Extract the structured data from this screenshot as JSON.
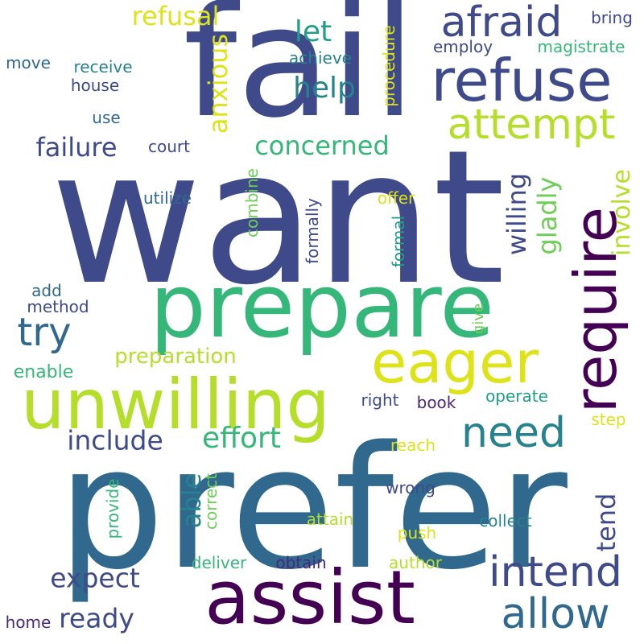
{
  "palette": {
    "navy": "#3e4a89",
    "indigo": "#482878",
    "purple": "#440154",
    "steel": "#31688e",
    "teal": "#26828e",
    "sea": "#1f9e89",
    "green": "#35b779",
    "lime": "#6ece58",
    "yellowgreen": "#b5de2b",
    "yellow": "#dde318"
  },
  "words": [
    {
      "text": "fail",
      "color": "navy",
      "vertical": false
    },
    {
      "text": "want",
      "color": "navy",
      "vertical": false
    },
    {
      "text": "prefer",
      "color": "steel",
      "vertical": false
    },
    {
      "text": "prepare",
      "color": "green",
      "vertical": false
    },
    {
      "text": "assist",
      "color": "purple",
      "vertical": false
    },
    {
      "text": "unwilling",
      "color": "yellowgreen",
      "vertical": false
    },
    {
      "text": "require",
      "color": "purple",
      "vertical": true
    },
    {
      "text": "refuse",
      "color": "navy",
      "vertical": false
    },
    {
      "text": "eager",
      "color": "yellow",
      "vertical": false
    },
    {
      "text": "afraid",
      "color": "navy",
      "vertical": false
    },
    {
      "text": "attempt",
      "color": "yellowgreen",
      "vertical": false
    },
    {
      "text": "allow",
      "color": "steel",
      "vertical": false
    },
    {
      "text": "intend",
      "color": "navy",
      "vertical": false
    },
    {
      "text": "need",
      "color": "teal",
      "vertical": false
    },
    {
      "text": "try",
      "color": "steel",
      "vertical": false
    },
    {
      "text": "effort",
      "color": "green",
      "vertical": false
    },
    {
      "text": "include",
      "color": "navy",
      "vertical": false
    },
    {
      "text": "expect",
      "color": "navy",
      "vertical": false
    },
    {
      "text": "ready",
      "color": "navy",
      "vertical": false
    },
    {
      "text": "concerned",
      "color": "green",
      "vertical": false
    },
    {
      "text": "failure",
      "color": "navy",
      "vertical": false
    },
    {
      "text": "refusal",
      "color": "yellow",
      "vertical": false
    },
    {
      "text": "help",
      "color": "teal",
      "vertical": false
    },
    {
      "text": "let",
      "color": "sea",
      "vertical": false
    },
    {
      "text": "anxious",
      "color": "yellow",
      "vertical": true
    },
    {
      "text": "willing",
      "color": "navy",
      "vertical": true
    },
    {
      "text": "gladly",
      "color": "lime",
      "vertical": true
    },
    {
      "text": "involve",
      "color": "yellowgreen",
      "vertical": true
    },
    {
      "text": "able",
      "color": "teal",
      "vertical": true
    },
    {
      "text": "tend",
      "color": "navy",
      "vertical": true
    },
    {
      "text": "preparation",
      "color": "yellowgreen",
      "vertical": false
    },
    {
      "text": "enable",
      "color": "green",
      "vertical": false
    },
    {
      "text": "bring",
      "color": "navy",
      "vertical": false
    },
    {
      "text": "employ",
      "color": "navy",
      "vertical": false
    },
    {
      "text": "magistrate",
      "color": "green",
      "vertical": false
    },
    {
      "text": "achieve",
      "color": "teal",
      "vertical": false
    },
    {
      "text": "procedure",
      "color": "yellow",
      "vertical": true
    },
    {
      "text": "move",
      "color": "steel",
      "vertical": false
    },
    {
      "text": "receive",
      "color": "teal",
      "vertical": false
    },
    {
      "text": "house",
      "color": "navy",
      "vertical": false
    },
    {
      "text": "use",
      "color": "steel",
      "vertical": false
    },
    {
      "text": "court",
      "color": "navy",
      "vertical": false
    },
    {
      "text": "utilize",
      "color": "steel",
      "vertical": false
    },
    {
      "text": "combine",
      "color": "lime",
      "vertical": true
    },
    {
      "text": "formally",
      "color": "navy",
      "vertical": true
    },
    {
      "text": "formal",
      "color": "sea",
      "vertical": true
    },
    {
      "text": "offer",
      "color": "yellow",
      "vertical": false
    },
    {
      "text": "add",
      "color": "steel",
      "vertical": false
    },
    {
      "text": "method",
      "color": "navy",
      "vertical": false
    },
    {
      "text": "give",
      "color": "lime",
      "vertical": true
    },
    {
      "text": "right",
      "color": "navy",
      "vertical": false
    },
    {
      "text": "book",
      "color": "indigo",
      "vertical": false
    },
    {
      "text": "operate",
      "color": "sea",
      "vertical": false
    },
    {
      "text": "step",
      "color": "yellow",
      "vertical": false
    },
    {
      "text": "reach",
      "color": "yellow",
      "vertical": false
    },
    {
      "text": "wrong",
      "color": "navy",
      "vertical": false
    },
    {
      "text": "provide",
      "color": "green",
      "vertical": true
    },
    {
      "text": "correct",
      "color": "lime",
      "vertical": true
    },
    {
      "text": "attain",
      "color": "yellowgreen",
      "vertical": false
    },
    {
      "text": "collect",
      "color": "teal",
      "vertical": false
    },
    {
      "text": "push",
      "color": "yellow",
      "vertical": false
    },
    {
      "text": "deliver",
      "color": "green",
      "vertical": false
    },
    {
      "text": "obtain",
      "color": "indigo",
      "vertical": false
    },
    {
      "text": "author",
      "color": "yellowgreen",
      "vertical": false
    },
    {
      "text": "home",
      "color": "indigo",
      "vertical": false
    }
  ]
}
